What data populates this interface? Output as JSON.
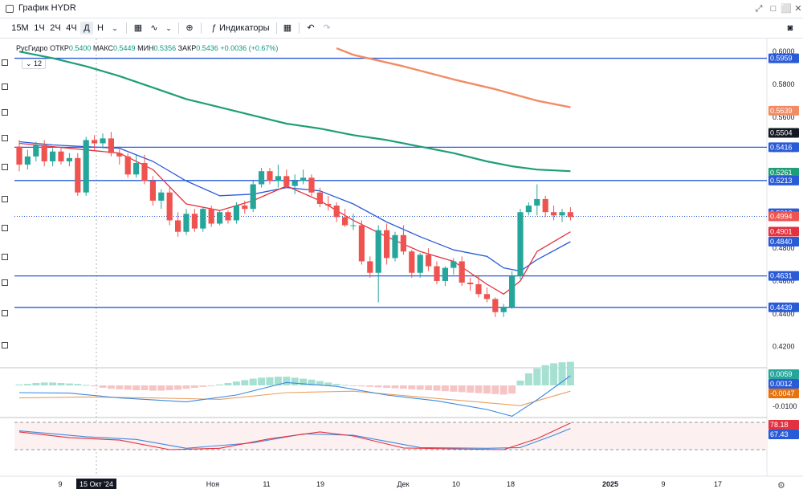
{
  "window": {
    "title": "График HYDR",
    "buttons": [
      "⤢",
      "□",
      "⬜",
      "✕"
    ]
  },
  "toolbar": {
    "timeframes": [
      "15М",
      "1Ч",
      "2Ч",
      "4Ч",
      "Д",
      "Н"
    ],
    "active_timeframe": "Д",
    "indicators_label": "Индикаторы"
  },
  "legend": {
    "symbol": "РусГидро",
    "open_label": "ОТКР",
    "open": "0.5400",
    "high_label": "МАКС",
    "high": "0.5449",
    "low_label": "МИН",
    "low": "0.5356",
    "close_label": "ЗАКР",
    "close": "0.5436",
    "change": "+0.0036 (+0.67%)",
    "badge": "12"
  },
  "colors": {
    "up": "#26a69a",
    "down": "#ef5350",
    "ma_long": "#f28b64",
    "ma_mid": "#1e9e78",
    "ma_fast_red": "#e2323f",
    "ma_fast_blue": "#2a5bd7",
    "hline": "#2a5bd7"
  },
  "chart_data": [
    {
      "type": "candlestick",
      "ylim": [
        0.41,
        0.605
      ],
      "y_ticks": [
        "0.6000",
        "0.5800",
        "0.5600",
        "0.5400",
        "0.5200",
        "0.5000",
        "0.4800",
        "0.4600",
        "0.4400",
        "0.4200"
      ],
      "x_ticks": [
        "9",
        "15 Окт '24",
        "Ноя",
        "11",
        "19",
        "Дек",
        "10",
        "18",
        "2025",
        "9",
        "17"
      ],
      "horizontal_levels": [
        0.5959,
        0.5416,
        0.5213,
        0.4631,
        0.4439
      ],
      "price_labels": [
        {
          "text": "0.5959",
          "value": 0.5959,
          "color": "#2a5bd7"
        },
        {
          "text": "0.5639",
          "value": 0.5639,
          "color": "#f28b64"
        },
        {
          "text": "0.5504",
          "value": 0.5504,
          "color": "#131722"
        },
        {
          "text": "0.5416",
          "value": 0.5416,
          "color": "#2a5bd7"
        },
        {
          "text": "0.5261",
          "value": 0.5261,
          "color": "#1e9e78"
        },
        {
          "text": "0.5213",
          "value": 0.5213,
          "color": "#2a5bd7"
        },
        {
          "text": "0.5013",
          "value": 0.5013,
          "color": "#2a5bd7"
        },
        {
          "text": "0.4994",
          "value": 0.4994,
          "color": "#ef5350"
        },
        {
          "text": "0.4901",
          "value": 0.4901,
          "color": "#e2323f"
        },
        {
          "text": "0.4840",
          "value": 0.484,
          "color": "#2a5bd7"
        },
        {
          "text": "0.4631",
          "value": 0.4631,
          "color": "#2a5bd7"
        },
        {
          "text": "0.4439",
          "value": 0.4439,
          "color": "#2a5bd7"
        }
      ],
      "candles": [
        [
          0.542,
          0.546,
          0.527,
          0.531
        ],
        [
          0.531,
          0.54,
          0.528,
          0.536
        ],
        [
          0.536,
          0.545,
          0.533,
          0.543
        ],
        [
          0.543,
          0.546,
          0.53,
          0.533
        ],
        [
          0.533,
          0.541,
          0.53,
          0.539
        ],
        [
          0.539,
          0.541,
          0.531,
          0.533
        ],
        [
          0.533,
          0.538,
          0.53,
          0.535
        ],
        [
          0.535,
          0.538,
          0.512,
          0.514
        ],
        [
          0.514,
          0.548,
          0.512,
          0.546
        ],
        [
          0.546,
          0.549,
          0.54,
          0.544
        ],
        [
          0.544,
          0.55,
          0.541,
          0.547
        ],
        [
          0.547,
          0.551,
          0.536,
          0.538
        ],
        [
          0.538,
          0.542,
          0.531,
          0.536
        ],
        [
          0.536,
          0.538,
          0.523,
          0.525
        ],
        [
          0.525,
          0.537,
          0.523,
          0.532
        ],
        [
          0.532,
          0.537,
          0.519,
          0.521
        ],
        [
          0.521,
          0.524,
          0.506,
          0.509
        ],
        [
          0.509,
          0.516,
          0.504,
          0.514
        ],
        [
          0.514,
          0.517,
          0.494,
          0.497
        ],
        [
          0.497,
          0.502,
          0.487,
          0.49
        ],
        [
          0.49,
          0.504,
          0.488,
          0.501
        ],
        [
          0.501,
          0.504,
          0.49,
          0.492
        ],
        [
          0.492,
          0.505,
          0.49,
          0.504
        ],
        [
          0.504,
          0.506,
          0.493,
          0.495
        ],
        [
          0.495,
          0.503,
          0.494,
          0.502
        ],
        [
          0.502,
          0.503,
          0.495,
          0.497
        ],
        [
          0.497,
          0.508,
          0.495,
          0.506
        ],
        [
          0.506,
          0.509,
          0.501,
          0.504
        ],
        [
          0.504,
          0.521,
          0.502,
          0.519
        ],
        [
          0.519,
          0.529,
          0.517,
          0.527
        ],
        [
          0.527,
          0.529,
          0.519,
          0.521
        ],
        [
          0.521,
          0.531,
          0.517,
          0.524
        ],
        [
          0.524,
          0.528,
          0.517,
          0.518
        ],
        [
          0.518,
          0.525,
          0.513,
          0.521
        ],
        [
          0.521,
          0.528,
          0.519,
          0.523
        ],
        [
          0.523,
          0.525,
          0.512,
          0.514
        ],
        [
          0.514,
          0.517,
          0.505,
          0.507
        ],
        [
          0.507,
          0.512,
          0.503,
          0.506
        ],
        [
          0.506,
          0.508,
          0.496,
          0.499
        ],
        [
          0.499,
          0.504,
          0.493,
          0.494
        ],
        [
          0.494,
          0.501,
          0.491,
          0.494
        ],
        [
          0.494,
          0.497,
          0.47,
          0.472
        ],
        [
          0.472,
          0.475,
          0.462,
          0.465
        ],
        [
          0.465,
          0.494,
          0.447,
          0.491
        ],
        [
          0.491,
          0.495,
          0.47,
          0.474
        ],
        [
          0.474,
          0.49,
          0.472,
          0.488
        ],
        [
          0.488,
          0.494,
          0.476,
          0.478
        ],
        [
          0.478,
          0.479,
          0.462,
          0.465
        ],
        [
          0.465,
          0.477,
          0.462,
          0.476
        ],
        [
          0.476,
          0.48,
          0.466,
          0.469
        ],
        [
          0.469,
          0.472,
          0.458,
          0.46
        ],
        [
          0.46,
          0.469,
          0.457,
          0.468
        ],
        [
          0.468,
          0.474,
          0.464,
          0.472
        ],
        [
          0.472,
          0.475,
          0.457,
          0.459
        ],
        [
          0.459,
          0.462,
          0.454,
          0.458
        ],
        [
          0.458,
          0.463,
          0.45,
          0.452
        ],
        [
          0.452,
          0.456,
          0.447,
          0.449
        ],
        [
          0.449,
          0.45,
          0.438,
          0.441
        ],
        [
          0.441,
          0.446,
          0.438,
          0.444
        ],
        [
          0.444,
          0.466,
          0.443,
          0.463
        ],
        [
          0.463,
          0.504,
          0.461,
          0.502
        ],
        [
          0.502,
          0.508,
          0.5,
          0.506
        ],
        [
          0.506,
          0.519,
          0.5,
          0.51
        ],
        [
          0.51,
          0.512,
          0.499,
          0.502
        ],
        [
          0.502,
          0.506,
          0.497,
          0.5
        ],
        [
          0.5,
          0.504,
          0.496,
          0.502
        ],
        [
          0.502,
          0.505,
          0.497,
          0.499
        ]
      ],
      "ma_long": [
        [
          38,
          0.602
        ],
        [
          40,
          0.598
        ],
        [
          46,
          0.591
        ],
        [
          52,
          0.583
        ],
        [
          57,
          0.577
        ],
        [
          62,
          0.57
        ],
        [
          66,
          0.566
        ]
      ],
      "ma_mid": [
        [
          0,
          0.6
        ],
        [
          4,
          0.596
        ],
        [
          8,
          0.591
        ],
        [
          12,
          0.585
        ],
        [
          16,
          0.578
        ],
        [
          20,
          0.571
        ],
        [
          24,
          0.566
        ],
        [
          28,
          0.561
        ],
        [
          32,
          0.556
        ],
        [
          36,
          0.553
        ],
        [
          40,
          0.549
        ],
        [
          44,
          0.546
        ],
        [
          48,
          0.542
        ],
        [
          52,
          0.538
        ],
        [
          56,
          0.533
        ],
        [
          59,
          0.53
        ],
        [
          62,
          0.528
        ],
        [
          66,
          0.527
        ]
      ],
      "ma_fast_red": [
        [
          0,
          0.544
        ],
        [
          4,
          0.542
        ],
        [
          8,
          0.54
        ],
        [
          12,
          0.538
        ],
        [
          16,
          0.528
        ],
        [
          20,
          0.507
        ],
        [
          24,
          0.503
        ],
        [
          28,
          0.509
        ],
        [
          32,
          0.518
        ],
        [
          36,
          0.509
        ],
        [
          40,
          0.497
        ],
        [
          44,
          0.487
        ],
        [
          48,
          0.478
        ],
        [
          52,
          0.472
        ],
        [
          56,
          0.458
        ],
        [
          58,
          0.452
        ],
        [
          60,
          0.46
        ],
        [
          62,
          0.478
        ],
        [
          66,
          0.49
        ]
      ],
      "ma_fast_blue": [
        [
          0,
          0.545
        ],
        [
          4,
          0.543
        ],
        [
          8,
          0.542
        ],
        [
          12,
          0.541
        ],
        [
          16,
          0.533
        ],
        [
          20,
          0.521
        ],
        [
          24,
          0.512
        ],
        [
          28,
          0.513
        ],
        [
          32,
          0.517
        ],
        [
          36,
          0.515
        ],
        [
          40,
          0.507
        ],
        [
          44,
          0.496
        ],
        [
          48,
          0.487
        ],
        [
          52,
          0.479
        ],
        [
          56,
          0.475
        ],
        [
          58,
          0.468
        ],
        [
          60,
          0.466
        ],
        [
          62,
          0.473
        ],
        [
          66,
          0.484
        ]
      ]
    },
    {
      "type": "histogram",
      "name": "MACD",
      "y_ticks": [
        "-0.0100"
      ],
      "value_labels": [
        {
          "text": "0.0059",
          "color": "#26a69a"
        },
        {
          "text": "0.0012",
          "color": "#2a5bd7"
        },
        {
          "text": "-0.0047",
          "color": "#e8720c"
        }
      ],
      "histogram": [
        0.2,
        0.3,
        0.5,
        0.6,
        0.6,
        0.5,
        0.4,
        0.3,
        0.1,
        -0.2,
        -0.5,
        -0.7,
        -0.8,
        -0.9,
        -1.0,
        -1.0,
        -1.1,
        -1.1,
        -1.0,
        -0.9,
        -0.7,
        -0.5,
        -0.3,
        -0.1,
        0.2,
        0.5,
        0.8,
        1.1,
        1.4,
        1.6,
        1.7,
        1.8,
        1.8,
        1.6,
        1.4,
        1.2,
        0.9,
        0.6,
        0.3,
        0.1,
        -0.1,
        -0.2,
        -0.3,
        -0.4,
        -0.5,
        -0.6,
        -0.7,
        -0.8,
        -0.9,
        -1.0,
        -1.1,
        -1.2,
        -1.3,
        -1.4,
        -1.5,
        -1.6,
        -1.7,
        -1.8,
        -1.9,
        -1.7,
        1.0,
        2.5,
        3.5,
        4.2,
        4.6,
        4.8,
        4.9
      ],
      "macd_line": [
        [
          0,
          -1.5
        ],
        [
          6,
          -1.6
        ],
        [
          12,
          -2.6
        ],
        [
          20,
          -3.4
        ],
        [
          26,
          -2.0
        ],
        [
          32,
          0.6
        ],
        [
          38,
          -0.2
        ],
        [
          44,
          -2.0
        ],
        [
          50,
          -3.2
        ],
        [
          56,
          -5.0
        ],
        [
          59,
          -6.4
        ],
        [
          62,
          -3.0
        ],
        [
          66,
          2.0
        ]
      ],
      "signal_line": [
        [
          0,
          -2.6
        ],
        [
          8,
          -2.4
        ],
        [
          16,
          -2.6
        ],
        [
          24,
          -2.9
        ],
        [
          32,
          -1.5
        ],
        [
          40,
          -1.2
        ],
        [
          48,
          -2.4
        ],
        [
          56,
          -3.6
        ],
        [
          60,
          -4.2
        ],
        [
          66,
          -1.2
        ]
      ]
    },
    {
      "type": "line",
      "name": "Stoch",
      "value_labels": [
        {
          "text": "78.18",
          "color": "#e2323f"
        },
        {
          "text": "67.43",
          "color": "#2a5bd7"
        }
      ],
      "k_line": [
        [
          0,
          72
        ],
        [
          6,
          55
        ],
        [
          12,
          48
        ],
        [
          18,
          20
        ],
        [
          24,
          24
        ],
        [
          30,
          52
        ],
        [
          36,
          72
        ],
        [
          40,
          60
        ],
        [
          46,
          25
        ],
        [
          52,
          22
        ],
        [
          58,
          20
        ],
        [
          62,
          52
        ],
        [
          66,
          98
        ]
      ],
      "d_line": [
        [
          0,
          75
        ],
        [
          8,
          58
        ],
        [
          14,
          50
        ],
        [
          20,
          24
        ],
        [
          28,
          40
        ],
        [
          34,
          66
        ],
        [
          40,
          62
        ],
        [
          48,
          26
        ],
        [
          56,
          24
        ],
        [
          60,
          26
        ],
        [
          64,
          62
        ],
        [
          66,
          82
        ]
      ]
    }
  ]
}
